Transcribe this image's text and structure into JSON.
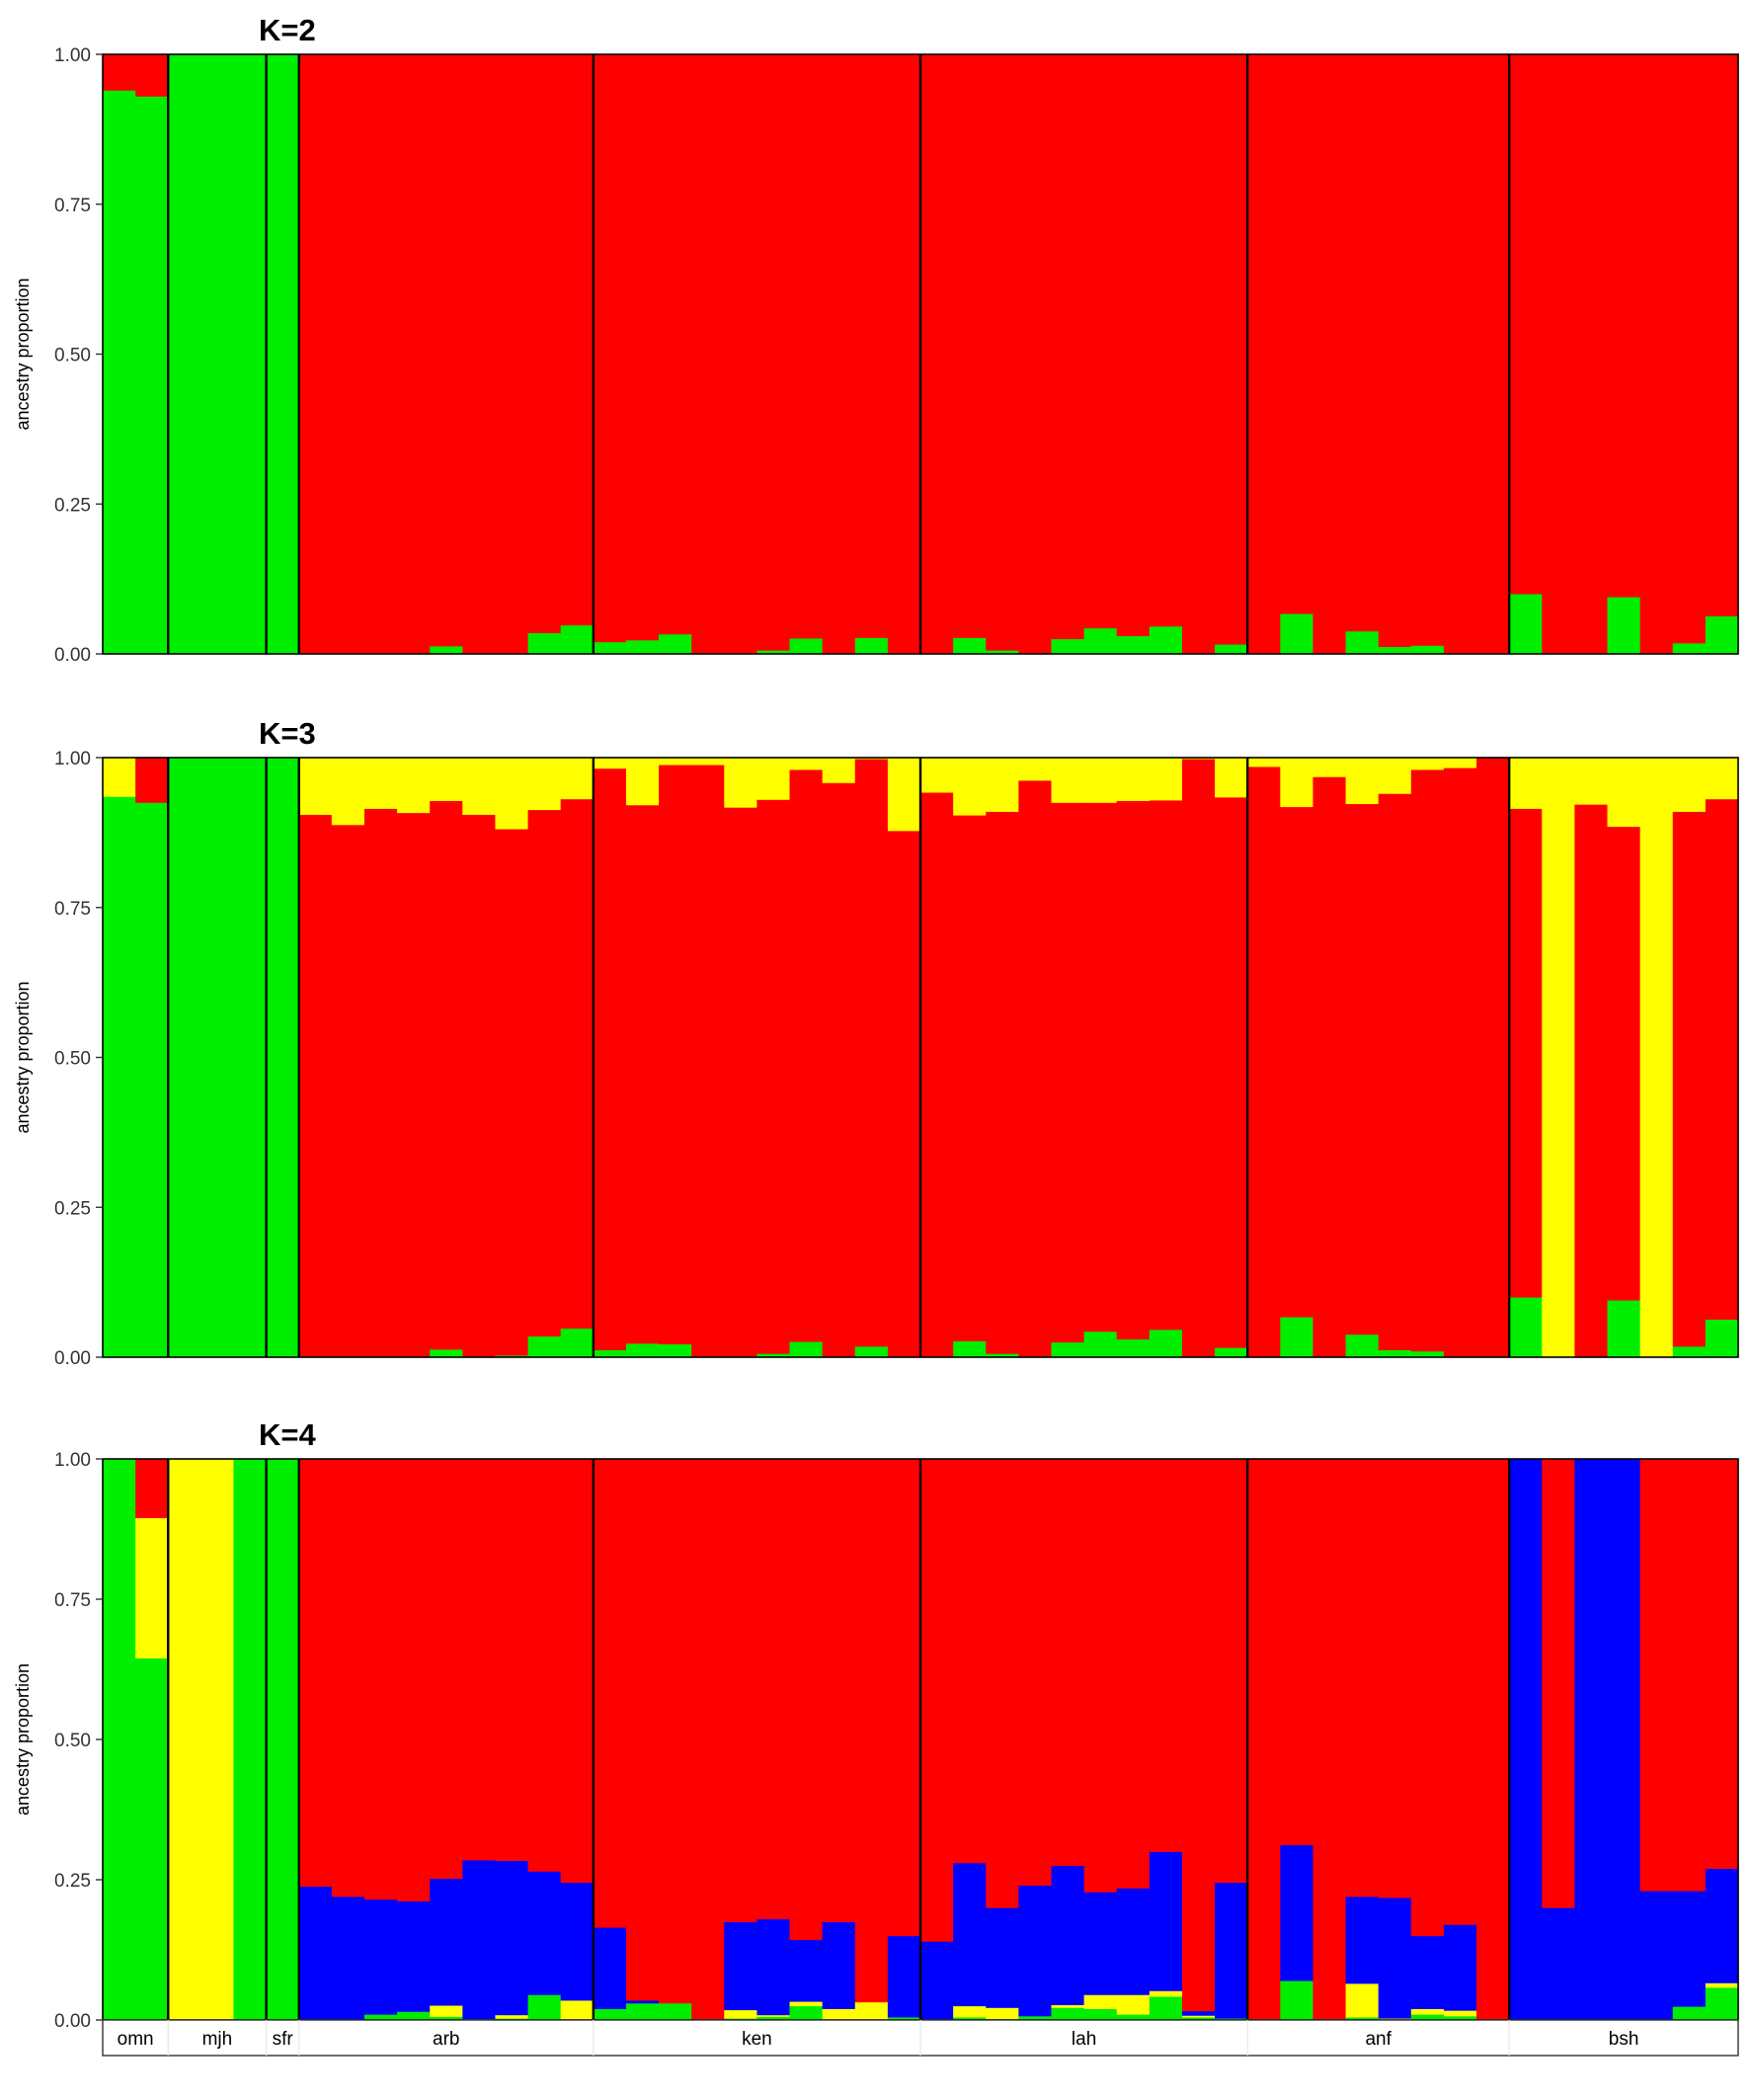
{
  "chart_data": {
    "type": "bar",
    "stacked": true,
    "ylabel": "ancestry proportion",
    "ylim": [
      0,
      1
    ],
    "yticks": [
      "0.00",
      "0.25",
      "0.50",
      "0.75",
      "1.00"
    ],
    "grid": false,
    "legend": "none",
    "colors": {
      "green": "#00ee00",
      "red": "#ff0000",
      "yellow": "#ffff00",
      "blue": "#0000ff"
    },
    "populations": [
      {
        "label": "omn",
        "n": 2
      },
      {
        "label": "mjh",
        "n": 3
      },
      {
        "label": "sfr",
        "n": 1
      },
      {
        "label": "arb",
        "n": 9
      },
      {
        "label": "ken",
        "n": 10
      },
      {
        "label": "lah",
        "n": 10
      },
      {
        "label": "anf",
        "n": 8
      },
      {
        "label": "bsh",
        "n": 7
      }
    ],
    "panels": [
      {
        "title": "K=2",
        "series": [
          {
            "name": "green",
            "values": [
              0.94,
              0.93,
              1,
              1,
              1,
              1,
              0,
              0,
              0,
              0,
              0.013,
              0,
              0,
              0.035,
              0.048,
              0.02,
              0.023,
              0.033,
              0,
              0,
              0.006,
              0.026,
              0,
              0.027,
              0,
              0,
              0.027,
              0.006,
              0,
              0.025,
              0.043,
              0.03,
              0.046,
              0,
              0.016,
              0,
              0.067,
              0,
              0.038,
              0.012,
              0.014,
              0,
              0,
              0.1,
              0,
              0,
              0.095,
              0,
              0.018,
              0.063
            ]
          },
          {
            "name": "red",
            "values": [
              0.06,
              0.07,
              0,
              0,
              0,
              0,
              1,
              1,
              1,
              1,
              0.987,
              1,
              1,
              0.965,
              0.952,
              0.98,
              0.977,
              0.967,
              1,
              1,
              0.994,
              0.974,
              1,
              0.973,
              1,
              1,
              0.973,
              0.994,
              1,
              0.975,
              0.957,
              0.97,
              0.954,
              1,
              0.984,
              1,
              0.933,
              1,
              0.962,
              0.988,
              0.986,
              1,
              1,
              0.9,
              1,
              1,
              0.905,
              1,
              0.982,
              0.937
            ]
          }
        ]
      },
      {
        "title": "K=3",
        "series": [
          {
            "name": "green",
            "values": [
              0.935,
              0.925,
              1,
              1,
              1,
              1,
              0,
              0,
              0,
              0,
              0.013,
              0,
              0.003,
              0.035,
              0.048,
              0.012,
              0.023,
              0.022,
              0,
              0,
              0.006,
              0.026,
              0,
              0.018,
              0,
              0,
              0.027,
              0.006,
              0,
              0.025,
              0.043,
              0.03,
              0.046,
              0,
              0.016,
              0,
              0.067,
              0,
              0.038,
              0.012,
              0.01,
              0,
              0,
              0.1,
              0,
              0,
              0.095,
              0,
              0.018,
              0.063
            ]
          },
          {
            "name": "red",
            "values": [
              0,
              0.075,
              0,
              0,
              0,
              0,
              0.905,
              0.888,
              0.915,
              0.908,
              0.915,
              0.905,
              0.878,
              0.878,
              0.883,
              0.97,
              0.898,
              0.966,
              0.988,
              0.917,
              0.924,
              0.954,
              0.958,
              0.98,
              0.878,
              0.942,
              0.877,
              0.904,
              0.962,
              0.9,
              0.882,
              0.898,
              0.883,
              0.998,
              0.918,
              0.985,
              0.851,
              0.968,
              0.885,
              0.928,
              0.97,
              0.983,
              1,
              0.815,
              0,
              0.922,
              0.79,
              0,
              0.892,
              0.868
            ]
          },
          {
            "name": "yellow",
            "values": [
              0.065,
              0,
              0,
              0,
              0,
              0,
              0.095,
              0.112,
              0.085,
              0.092,
              0.072,
              0.095,
              0.119,
              0.087,
              0.069,
              0.018,
              0.079,
              0.012,
              0.012,
              0.083,
              0.07,
              0.02,
              0.042,
              0.002,
              0.122,
              0.058,
              0.096,
              0.09,
              0.038,
              0.075,
              0.075,
              0.072,
              0.071,
              0.002,
              0.066,
              0.015,
              0.082,
              0.032,
              0.077,
              0.06,
              0.02,
              0.017,
              0,
              0.085,
              1,
              0.078,
              0.115,
              1,
              0.09,
              0.069
            ]
          }
        ]
      },
      {
        "title": "K=4",
        "series": [
          {
            "name": "green",
            "values": [
              1,
              0.645,
              0,
              0,
              1,
              1,
              0,
              0,
              0.01,
              0.015,
              0.006,
              0.002,
              0.003,
              0.045,
              0,
              0.02,
              0.03,
              0.03,
              0,
              0.003,
              0.006,
              0.025,
              0,
              0,
              0.005,
              0,
              0.005,
              0.002,
              0.007,
              0.022,
              0.02,
              0.01,
              0.042,
              0.005,
              0.003,
              0,
              0.07,
              0,
              0.005,
              0,
              0.01,
              0.007,
              0,
              0,
              0,
              0,
              0,
              0,
              0.024,
              0.058
            ]
          },
          {
            "name": "yellow",
            "values": [
              0,
              0.25,
              1,
              1,
              0,
              0,
              0,
              0,
              0,
              0,
              0.02,
              0,
              0.006,
              0,
              0.035,
              0,
              0,
              0,
              0,
              0.015,
              0.003,
              0.008,
              0.02,
              0.032,
              0,
              0,
              0.02,
              0.02,
              0,
              0.005,
              0.025,
              0.035,
              0.01,
              0.003,
              0,
              0,
              0,
              0,
              0.06,
              0.003,
              0.01,
              0.01,
              0,
              0,
              0,
              0,
              0,
              0,
              0,
              0.008
            ]
          },
          {
            "name": "blue",
            "values": [
              0,
              0,
              0,
              0,
              0,
              0,
              0.238,
              0.22,
              0.205,
              0.197,
              0.226,
              0.283,
              0.275,
              0.22,
              0.21,
              0.145,
              0.005,
              0,
              0,
              0.157,
              0.171,
              0.11,
              0.155,
              0,
              0.145,
              0.14,
              0.255,
              0.178,
              0.233,
              0.248,
              0.183,
              0.19,
              0.248,
              0.008,
              0.242,
              0,
              0.242,
              0,
              0.155,
              0.215,
              0.13,
              0.153,
              0,
              1,
              0.2,
              1,
              1,
              0.23,
              0.206,
              0.204
            ]
          },
          {
            "name": "red",
            "values": [
              0,
              0.105,
              0,
              0,
              0,
              0,
              0.762,
              0.78,
              0.785,
              0.788,
              0.748,
              0.715,
              0.716,
              0.735,
              0.755,
              0.835,
              0.965,
              0.97,
              1,
              0.825,
              0.82,
              0.857,
              0.825,
              0.968,
              0.85,
              0.86,
              0.72,
              0.8,
              0.76,
              0.725,
              0.772,
              0.765,
              0.7,
              0.984,
              0.755,
              1,
              0.688,
              1,
              0.78,
              0.782,
              0.85,
              0.83,
              1,
              0,
              0.8,
              0,
              0,
              0.77,
              0.77,
              0.73
            ]
          }
        ]
      }
    ]
  }
}
